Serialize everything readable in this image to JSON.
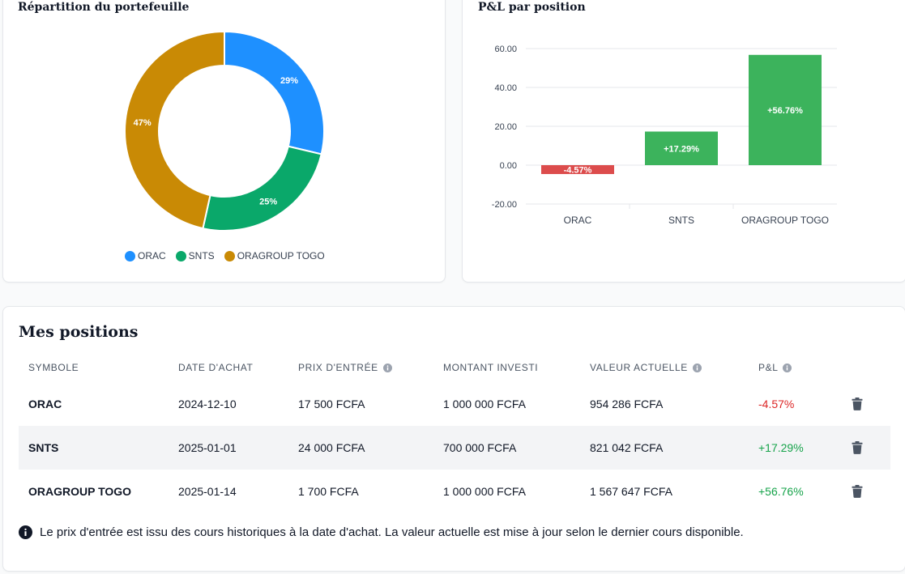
{
  "allocation": {
    "title": "Répartition du portefeuille",
    "legend": [
      {
        "label": "ORAC",
        "color": "#1e90ff"
      },
      {
        "label": "SNTS",
        "color": "#0aa86a"
      },
      {
        "label": "ORAGROUP TOGO",
        "color": "#c98a05"
      }
    ]
  },
  "pnl": {
    "title": "P&L par position"
  },
  "chart_data": [
    {
      "type": "pie",
      "title": "Répartition du portefeuille",
      "categories": [
        "ORAC",
        "SNTS",
        "ORAGROUP TOGO"
      ],
      "values": [
        29,
        25,
        47
      ],
      "labels": [
        "29%",
        "25%",
        "47%"
      ],
      "colors": [
        "#1e90ff",
        "#0aa86a",
        "#c98a05"
      ],
      "donut": true,
      "legend": "bottom"
    },
    {
      "type": "bar",
      "title": "P&L par position",
      "categories": [
        "ORAC",
        "SNTS",
        "ORAGROUP TOGO"
      ],
      "values": [
        -4.57,
        17.29,
        56.76
      ],
      "data_labels": [
        "-4.57%",
        "+17.29%",
        "+56.76%"
      ],
      "colors": [
        "#dc4c4c",
        "#3cb35c",
        "#3cb35c"
      ],
      "ylim": [
        -20,
        60
      ],
      "yticks": [
        "60.00",
        "40.00",
        "20.00",
        "0.00",
        "-20.00"
      ],
      "ytick_values": [
        60,
        40,
        20,
        0,
        -20
      ],
      "grid": true
    }
  ],
  "positions": {
    "title": "Mes positions",
    "columns": [
      "SYMBOLE",
      "DATE D'ACHAT",
      "PRIX D'ENTRÉE",
      "MONTANT INVESTI",
      "VALEUR ACTUELLE",
      "P&L"
    ],
    "rows": [
      {
        "symbol": "ORAC",
        "date": "2024-12-10",
        "entry": "17 500 FCFA",
        "invested": "1 000 000 FCFA",
        "value": "954 286 FCFA",
        "pnl": "-4.57%",
        "pnl_sign": "neg"
      },
      {
        "symbol": "SNTS",
        "date": "2025-01-01",
        "entry": "24 000 FCFA",
        "invested": "700 000 FCFA",
        "value": "821 042 FCFA",
        "pnl": "+17.29%",
        "pnl_sign": "pos"
      },
      {
        "symbol": "ORAGROUP TOGO",
        "date": "2025-01-14",
        "entry": "1 700 FCFA",
        "invested": "1 000 000 FCFA",
        "value": "1 567 647 FCFA",
        "pnl": "+56.76%",
        "pnl_sign": "pos"
      }
    ],
    "note": "Le prix d'entrée est issu des cours historiques à la date d'achat. La valeur actuelle est mise à jour selon le dernier cours disponible.",
    "icons": {
      "info": "info-icon",
      "delete": "trash-icon"
    }
  }
}
